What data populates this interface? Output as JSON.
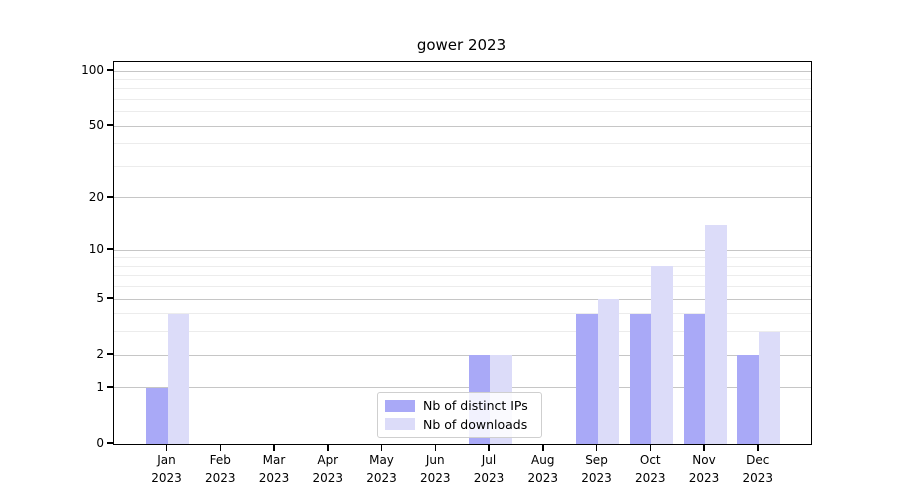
{
  "chart_data": {
    "type": "bar",
    "title": "gower 2023",
    "categories": [
      "Jan\n2023",
      "Feb\n2023",
      "Mar\n2023",
      "Apr\n2023",
      "May\n2023",
      "Jun\n2023",
      "Jul\n2023",
      "Aug\n2023",
      "Sep\n2023",
      "Oct\n2023",
      "Nov\n2023",
      "Dec\n2023"
    ],
    "series": [
      {
        "name": "Nb of distinct IPs",
        "color": "#a9a9f7",
        "values": [
          1,
          0,
          0,
          0,
          0,
          0,
          2,
          0,
          4,
          4,
          4,
          2
        ]
      },
      {
        "name": "Nb of downloads",
        "color": "#dcdcf9",
        "values": [
          4,
          0,
          0,
          0,
          0,
          0,
          2,
          0,
          5,
          8,
          14,
          3
        ]
      }
    ],
    "y_axis": {
      "scale": "log1p",
      "ticks": [
        0,
        1,
        2,
        5,
        10,
        20,
        50,
        100
      ],
      "minor_gridlines": [
        3,
        4,
        6,
        7,
        8,
        9,
        30,
        40,
        60,
        70,
        80,
        90
      ],
      "range": [
        0,
        100
      ]
    },
    "x_axis": {
      "year": "2023"
    },
    "grid": true,
    "legend": {
      "position": "lower center"
    },
    "colors": {
      "bar_ips": "#a9a9f7",
      "bar_downloads": "#dcdcf9",
      "major_grid": "#c6c6c6",
      "minor_grid": "#ececec",
      "spine": "#000000"
    }
  }
}
